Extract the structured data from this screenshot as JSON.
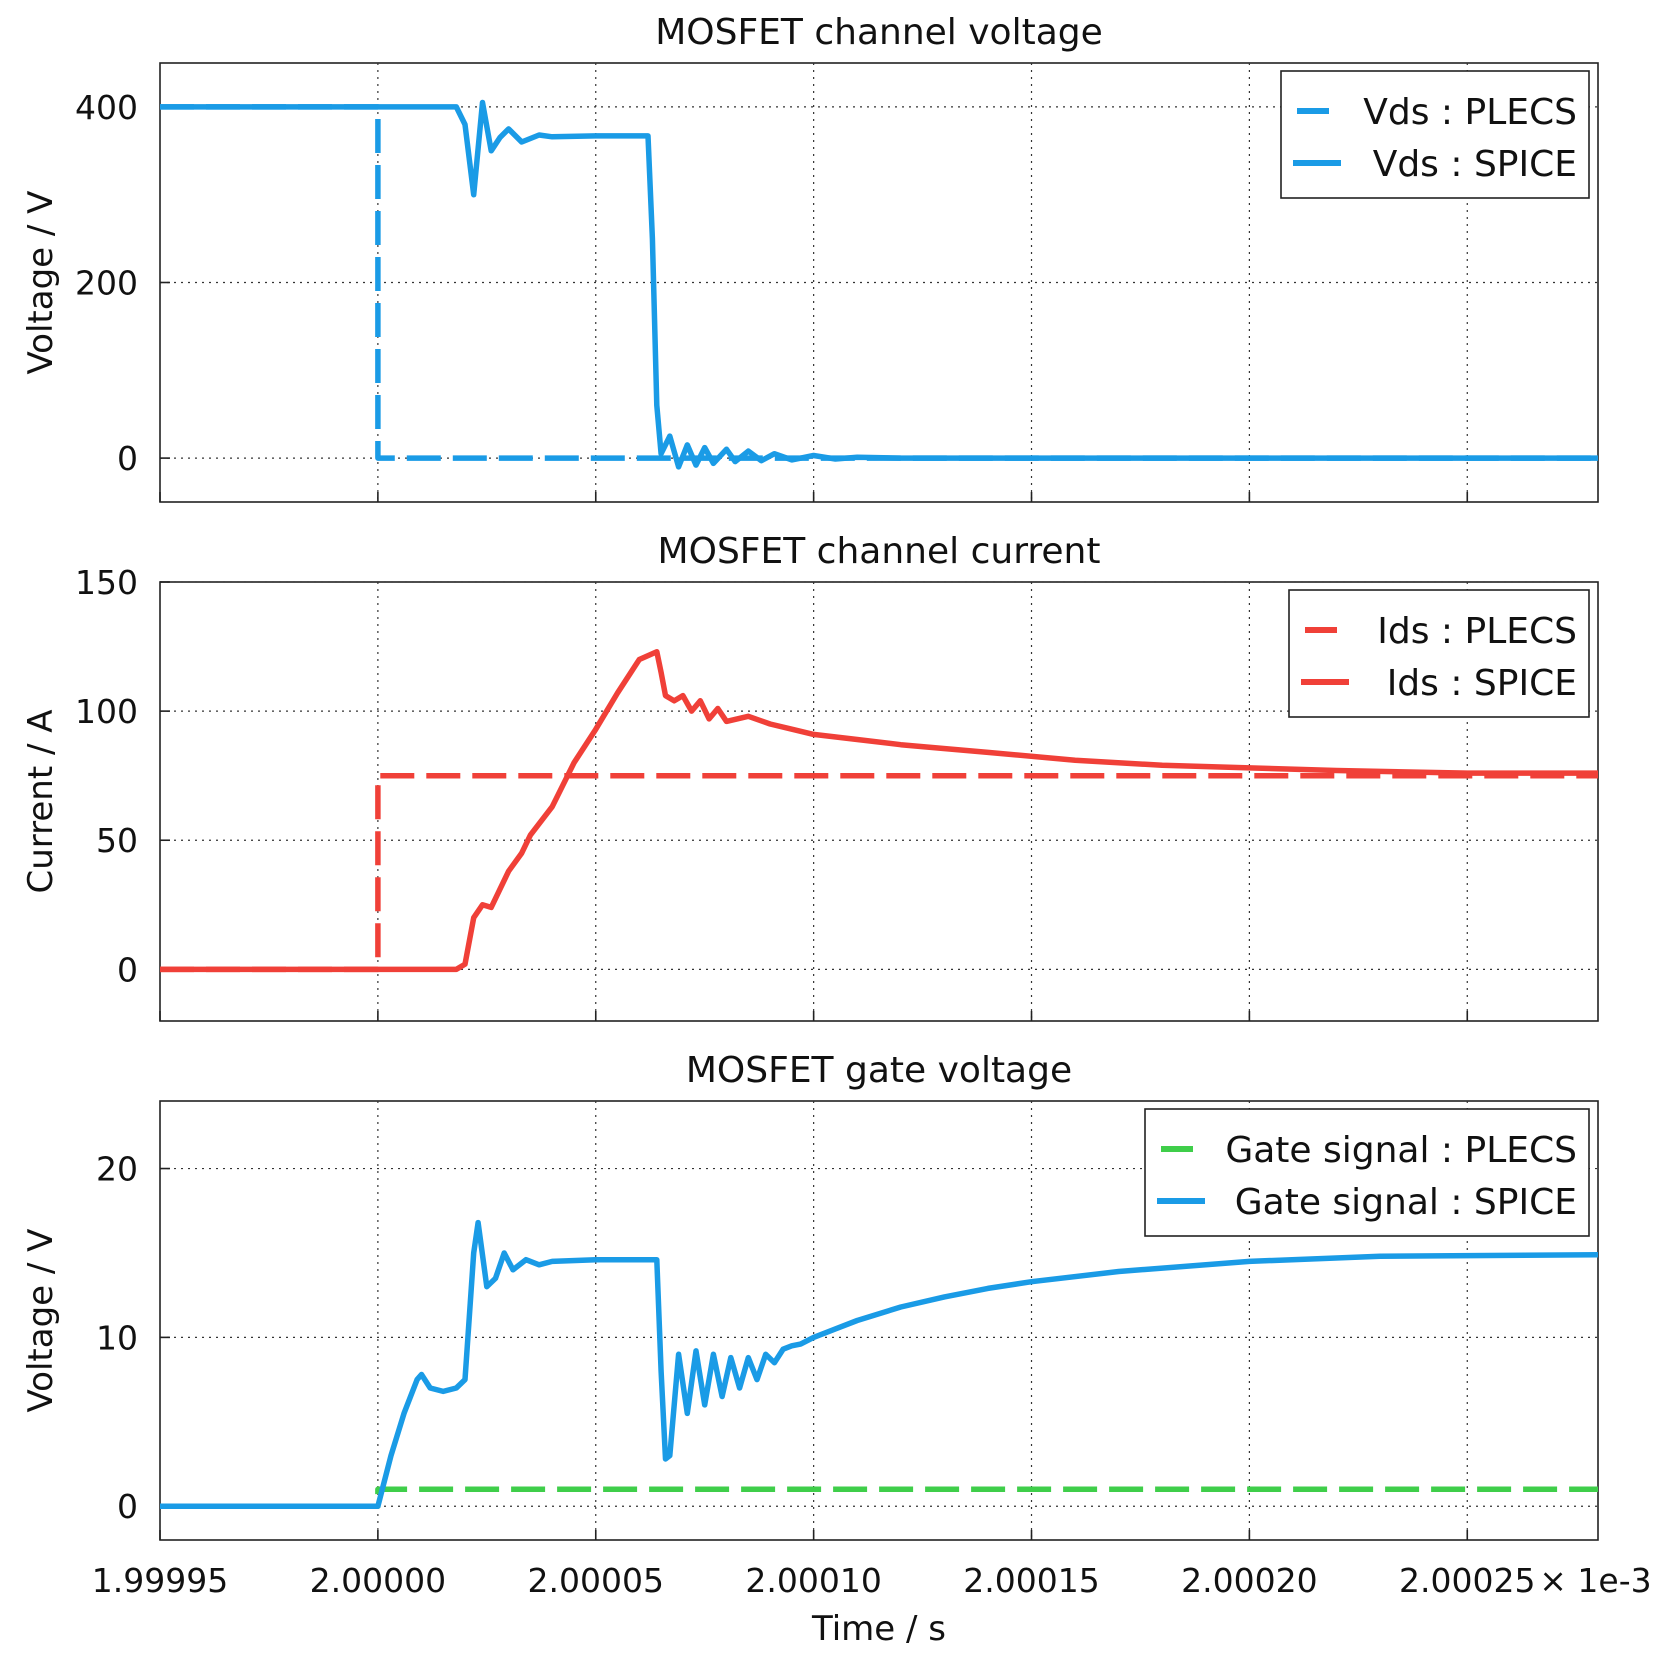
{
  "chart_data": [
    {
      "type": "line",
      "title": "MOSFET channel voltage",
      "ylabel": "Voltage / V",
      "xlabel": "",
      "xlim": [
        1.99995,
        2.00028
      ],
      "ylim": [
        -50,
        450
      ],
      "yticks": [
        0,
        200,
        400
      ],
      "xticks": [
        1.99995,
        2.0,
        2.00005,
        2.0001,
        2.00015,
        2.0002,
        2.00025
      ],
      "xtick_labels": [],
      "grid": true,
      "legend_position": "top-right",
      "series": [
        {
          "name": "Vds : PLECS",
          "style": "dashed",
          "color": "#1a9be6",
          "x": [
            1.99995,
            2.0,
            2.0,
            2.00028
          ],
          "y": [
            400,
            400,
            0,
            0
          ]
        },
        {
          "name": "Vds : SPICE",
          "style": "solid",
          "color": "#1a9be6",
          "x": [
            1.99995,
            2.000018,
            2.00002,
            2.000022,
            2.000024,
            2.000026,
            2.000028,
            2.00003,
            2.000033,
            2.000037,
            2.00004,
            2.00005,
            2.000062,
            2.000063,
            2.000064,
            2.000065,
            2.000067,
            2.000069,
            2.000071,
            2.000073,
            2.000075,
            2.000077,
            2.00008,
            2.000082,
            2.000085,
            2.000088,
            2.000091,
            2.000095,
            2.0001,
            2.000105,
            2.00011,
            2.00012,
            2.00015,
            2.00028
          ],
          "y": [
            400,
            400,
            380,
            300,
            405,
            350,
            365,
            375,
            360,
            368,
            366,
            367,
            367,
            250,
            60,
            5,
            25,
            -10,
            15,
            -8,
            12,
            -6,
            10,
            -4,
            8,
            -3,
            5,
            -2,
            3,
            -1,
            1,
            0,
            0,
            0
          ]
        }
      ]
    },
    {
      "type": "line",
      "title": "MOSFET channel current",
      "ylabel": "Current / A",
      "xlabel": "",
      "xlim": [
        1.99995,
        2.00028
      ],
      "ylim": [
        -20,
        150
      ],
      "yticks": [
        0,
        50,
        100,
        150
      ],
      "xticks": [
        1.99995,
        2.0,
        2.00005,
        2.0001,
        2.00015,
        2.0002,
        2.00025
      ],
      "xtick_labels": [],
      "grid": true,
      "legend_position": "top-right",
      "series": [
        {
          "name": "Ids : PLECS",
          "style": "dashed",
          "color": "#f04038",
          "x": [
            1.99995,
            2.0,
            2.0,
            2.00028
          ],
          "y": [
            0,
            0,
            75,
            75
          ]
        },
        {
          "name": "Ids : SPICE",
          "style": "solid",
          "color": "#f04038",
          "x": [
            1.99995,
            2.000018,
            2.00002,
            2.000022,
            2.000024,
            2.000026,
            2.00003,
            2.000033,
            2.000035,
            2.00004,
            2.000045,
            2.00005,
            2.000055,
            2.00006,
            2.000064,
            2.000065,
            2.000066,
            2.000068,
            2.00007,
            2.000072,
            2.000074,
            2.000076,
            2.000078,
            2.00008,
            2.000085,
            2.00009,
            2.000095,
            2.0001,
            2.00011,
            2.00012,
            2.00014,
            2.00016,
            2.00018,
            2.0002,
            2.00022,
            2.00025,
            2.00028
          ],
          "y": [
            0,
            0,
            2,
            20,
            25,
            24,
            38,
            45,
            52,
            63,
            80,
            93,
            107,
            120,
            123,
            115,
            106,
            104,
            106,
            100,
            104,
            97,
            101,
            96,
            98,
            95,
            93,
            91,
            89,
            87,
            84,
            81,
            79,
            78,
            77,
            76,
            76
          ]
        }
      ]
    },
    {
      "type": "line",
      "title": "MOSFET gate voltage",
      "ylabel": "Voltage / V",
      "xlabel": "Time / s",
      "xlim": [
        1.99995,
        2.00028
      ],
      "ylim": [
        -2,
        24
      ],
      "yticks": [
        0,
        10,
        20
      ],
      "xticks": [
        1.99995,
        2.0,
        2.00005,
        2.0001,
        2.00015,
        2.0002,
        2.00025
      ],
      "xtick_labels": [
        "1.99995",
        "2.00000",
        "2.00005",
        "2.00010",
        "2.00015",
        "2.00020",
        "2.00025"
      ],
      "x_multiplier_label": "× 1e-3",
      "grid": true,
      "legend_position": "top-right",
      "series": [
        {
          "name": "Gate signal : PLECS",
          "style": "dashed",
          "color": "#3fce4a",
          "x": [
            1.99995,
            2.0,
            2.0,
            2.00028
          ],
          "y": [
            0,
            0,
            1,
            1
          ]
        },
        {
          "name": "Gate signal : SPICE",
          "style": "solid",
          "color": "#1a9be6",
          "x": [
            1.99995,
            2.0,
            2.000003,
            2.000006,
            2.000009,
            2.00001,
            2.000012,
            2.000015,
            2.000018,
            2.00002,
            2.000022,
            2.000023,
            2.000025,
            2.000027,
            2.000029,
            2.000031,
            2.000034,
            2.000037,
            2.00004,
            2.00005,
            2.000064,
            2.000065,
            2.000066,
            2.000067,
            2.000069,
            2.000071,
            2.000073,
            2.000075,
            2.000077,
            2.000079,
            2.000081,
            2.000083,
            2.000085,
            2.000087,
            2.000089,
            2.000091,
            2.000093,
            2.000095,
            2.000097,
            2.0001,
            2.000105,
            2.00011,
            2.00012,
            2.00013,
            2.00014,
            2.00015,
            2.00017,
            2.0002,
            2.00023,
            2.00028
          ],
          "y": [
            0,
            0,
            3,
            5.5,
            7.5,
            7.8,
            7,
            6.8,
            7,
            7.5,
            15,
            16.8,
            13,
            13.5,
            15,
            14,
            14.6,
            14.3,
            14.5,
            14.6,
            14.6,
            8,
            2.8,
            3,
            9,
            5.5,
            9.2,
            6,
            9,
            6.5,
            8.8,
            7,
            8.8,
            7.5,
            9,
            8.5,
            9.3,
            9.5,
            9.6,
            10,
            10.5,
            11,
            11.8,
            12.4,
            12.9,
            13.3,
            13.9,
            14.5,
            14.8,
            14.9
          ]
        }
      ]
    }
  ]
}
